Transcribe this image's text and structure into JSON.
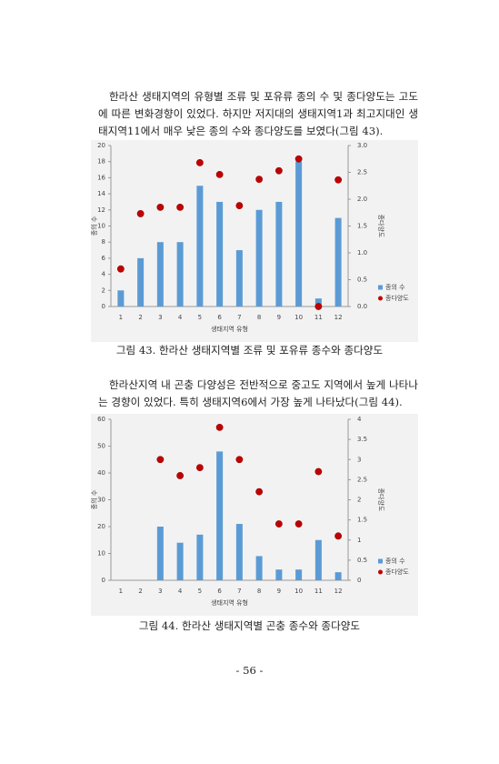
{
  "paragraphs": [
    "한라산 생태지역의 유형별 조류 및 포유류 종의 수 및 종다양도는 고도에 따른 변화경향이 있었다. 하지만 저지대의 생태지역1과 최고지대인 생태지역11에서 매우 낮은 종의 수와 종다양도를 보였다(그림 43).",
    "한라산지역 내 곤충 다양성은 전반적으로 중고도 지역에서 높게 나타나는 경향이 있었다. 특히 생태지역6에서 가장 높게 나타났다(그림 44)."
  ],
  "chart_data": [
    {
      "type": "bar",
      "caption": "그림 43. 한라산 생태지역별 조류 및 포유류 종수와 종다양도",
      "x_label": "생태지역 유형",
      "y_label": "종의 수",
      "y2_label": "종다양도",
      "categories": [
        1,
        2,
        3,
        4,
        5,
        6,
        7,
        8,
        9,
        10,
        11,
        12
      ],
      "series": [
        {
          "name": "종의 수",
          "type": "bar",
          "color": "#5b9bd5",
          "values": [
            2,
            6,
            8,
            8,
            15,
            13,
            7,
            12,
            13,
            18,
            1,
            11
          ]
        },
        {
          "name": "종다양도",
          "type": "scatter",
          "axis": "y2",
          "color": "#c00000",
          "values": [
            0.7,
            1.73,
            1.85,
            1.85,
            2.68,
            2.46,
            1.88,
            2.37,
            2.53,
            2.75,
            0,
            2.36
          ]
        }
      ],
      "ylim": [
        0,
        20
      ],
      "yticks": [
        0,
        2,
        4,
        6,
        8,
        10,
        12,
        14,
        16,
        18,
        20
      ],
      "y2lim": [
        0,
        3
      ],
      "y2ticks": [
        {
          "value": 0,
          "label": "0.0"
        },
        {
          "value": 0.5,
          "label": "0.5"
        },
        {
          "value": 1,
          "label": "1.0"
        },
        {
          "value": 1.5,
          "label": "1.5"
        },
        {
          "value": 2,
          "label": "2.0"
        },
        {
          "value": 2.5,
          "label": "2.5"
        },
        {
          "value": 3,
          "label": "3.0"
        }
      ],
      "legend": "right"
    },
    {
      "type": "bar",
      "caption": "그림 44. 한라산 생태지역별 곤충 종수와 종다양도",
      "x_label": "생태지역 유형",
      "y_label": "종의 수",
      "y2_label": "종다양도",
      "categories": [
        1,
        2,
        3,
        4,
        5,
        6,
        7,
        8,
        9,
        10,
        11,
        12
      ],
      "series": [
        {
          "name": "종의 수",
          "type": "bar",
          "color": "#5b9bd5",
          "values": [
            null,
            null,
            20,
            14,
            17,
            48,
            21,
            9,
            4,
            4,
            15,
            3
          ]
        },
        {
          "name": "종다양도",
          "type": "scatter",
          "axis": "y2",
          "color": "#c00000",
          "values": [
            null,
            null,
            3.0,
            2.6,
            2.8,
            3.8,
            3.0,
            2.2,
            1.4,
            1.4,
            2.7,
            1.1
          ]
        }
      ],
      "ylim": [
        0,
        60
      ],
      "yticks": [
        0,
        10,
        20,
        30,
        40,
        50,
        60
      ],
      "y2lim": [
        0,
        4
      ],
      "y2ticks": [
        0,
        0.5,
        1,
        1.5,
        2,
        2.5,
        3,
        3.5,
        4
      ],
      "legend": "right"
    }
  ],
  "page_number": "- 56 -"
}
